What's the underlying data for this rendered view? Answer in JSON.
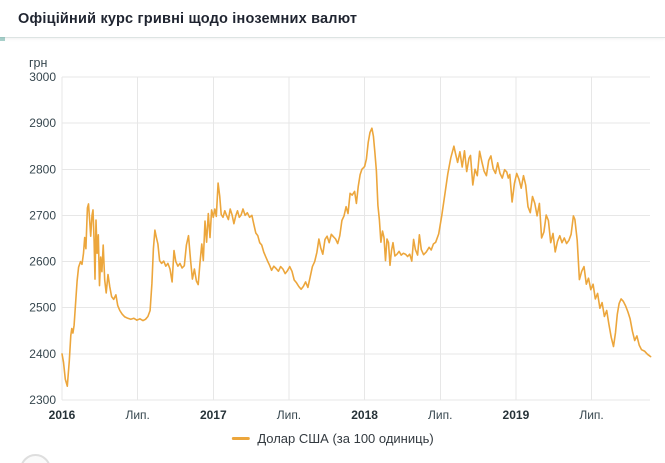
{
  "header": {
    "title": "Офіційний курс гривні щодо іноземних валют"
  },
  "legend": {
    "label": "Долар США (за 100 одиниць)"
  },
  "colors": {
    "line": "#eca63c",
    "grid": "#e7e7e7",
    "axis_text": "#37474f",
    "year_text": "#263238",
    "title_text": "#1f2430",
    "header_border": "#dde4e3",
    "background": "#ffffff"
  },
  "chart_data": {
    "type": "line",
    "title": "Офіційний курс гривні щодо іноземних валют",
    "ylabel": "грн",
    "xlabel": "",
    "ylim": [
      2300,
      3000
    ],
    "y_ticks": [
      3000,
      2900,
      2800,
      2700,
      2600,
      2500,
      2400,
      2300
    ],
    "x_ticks": [
      {
        "t": 0.0,
        "label": "2016",
        "bold": true
      },
      {
        "t": 0.5,
        "label": "Лип.",
        "bold": false
      },
      {
        "t": 1.0,
        "label": "2017",
        "bold": true
      },
      {
        "t": 1.5,
        "label": "Лип.",
        "bold": false
      },
      {
        "t": 2.0,
        "label": "2018",
        "bold": true
      },
      {
        "t": 2.5,
        "label": "Лип.",
        "bold": false
      },
      {
        "t": 3.0,
        "label": "2019",
        "bold": true
      },
      {
        "t": 3.5,
        "label": "Лип.",
        "bold": false
      }
    ],
    "x_unit": "years since 2016-01 (0 = Jan 2016, 0.5 = Jul 2016)",
    "grid": true,
    "legend_position": "bottom-center",
    "series": [
      {
        "name": "Долар США (за 100 одиниць)",
        "color": "#eca63c",
        "points": [
          [
            0.0,
            2400
          ],
          [
            0.01,
            2382
          ],
          [
            0.022,
            2345
          ],
          [
            0.035,
            2330
          ],
          [
            0.048,
            2385
          ],
          [
            0.058,
            2440
          ],
          [
            0.065,
            2455
          ],
          [
            0.072,
            2445
          ],
          [
            0.08,
            2462
          ],
          [
            0.09,
            2510
          ],
          [
            0.1,
            2558
          ],
          [
            0.11,
            2588
          ],
          [
            0.122,
            2600
          ],
          [
            0.132,
            2594
          ],
          [
            0.142,
            2618
          ],
          [
            0.15,
            2652
          ],
          [
            0.158,
            2628
          ],
          [
            0.168,
            2716
          ],
          [
            0.175,
            2725
          ],
          [
            0.183,
            2688
          ],
          [
            0.19,
            2655
          ],
          [
            0.198,
            2700
          ],
          [
            0.205,
            2712
          ],
          [
            0.212,
            2645
          ],
          [
            0.218,
            2562
          ],
          [
            0.225,
            2690
          ],
          [
            0.232,
            2618
          ],
          [
            0.24,
            2658
          ],
          [
            0.248,
            2548
          ],
          [
            0.256,
            2610
          ],
          [
            0.264,
            2578
          ],
          [
            0.272,
            2636
          ],
          [
            0.282,
            2560
          ],
          [
            0.292,
            2532
          ],
          [
            0.304,
            2572
          ],
          [
            0.316,
            2545
          ],
          [
            0.328,
            2524
          ],
          [
            0.342,
            2518
          ],
          [
            0.356,
            2528
          ],
          [
            0.368,
            2505
          ],
          [
            0.382,
            2494
          ],
          [
            0.398,
            2486
          ],
          [
            0.415,
            2480
          ],
          [
            0.435,
            2477
          ],
          [
            0.455,
            2475
          ],
          [
            0.475,
            2477
          ],
          [
            0.495,
            2473
          ],
          [
            0.515,
            2476
          ],
          [
            0.535,
            2472
          ],
          [
            0.552,
            2475
          ],
          [
            0.568,
            2481
          ],
          [
            0.582,
            2494
          ],
          [
            0.594,
            2552
          ],
          [
            0.604,
            2628
          ],
          [
            0.614,
            2668
          ],
          [
            0.624,
            2652
          ],
          [
            0.634,
            2638
          ],
          [
            0.645,
            2602
          ],
          [
            0.658,
            2596
          ],
          [
            0.672,
            2601
          ],
          [
            0.686,
            2590
          ],
          [
            0.7,
            2596
          ],
          [
            0.714,
            2584
          ],
          [
            0.728,
            2556
          ],
          [
            0.74,
            2624
          ],
          [
            0.752,
            2600
          ],
          [
            0.766,
            2590
          ],
          [
            0.78,
            2596
          ],
          [
            0.794,
            2586
          ],
          [
            0.808,
            2591
          ],
          [
            0.822,
            2636
          ],
          [
            0.836,
            2656
          ],
          [
            0.85,
            2602
          ],
          [
            0.862,
            2562
          ],
          [
            0.875,
            2584
          ],
          [
            0.888,
            2558
          ],
          [
            0.9,
            2550
          ],
          [
            0.912,
            2598
          ],
          [
            0.924,
            2638
          ],
          [
            0.934,
            2602
          ],
          [
            0.945,
            2688
          ],
          [
            0.956,
            2642
          ],
          [
            0.967,
            2704
          ],
          [
            0.978,
            2652
          ],
          [
            0.989,
            2712
          ],
          [
            1.0,
            2696
          ],
          [
            1.01,
            2714
          ],
          [
            1.02,
            2698
          ],
          [
            1.032,
            2770
          ],
          [
            1.042,
            2742
          ],
          [
            1.052,
            2702
          ],
          [
            1.064,
            2696
          ],
          [
            1.076,
            2710
          ],
          [
            1.088,
            2700
          ],
          [
            1.1,
            2691
          ],
          [
            1.112,
            2714
          ],
          [
            1.124,
            2701
          ],
          [
            1.136,
            2682
          ],
          [
            1.148,
            2699
          ],
          [
            1.16,
            2710
          ],
          [
            1.172,
            2696
          ],
          [
            1.184,
            2701
          ],
          [
            1.196,
            2714
          ],
          [
            1.21,
            2700
          ],
          [
            1.225,
            2706
          ],
          [
            1.24,
            2696
          ],
          [
            1.255,
            2700
          ],
          [
            1.268,
            2681
          ],
          [
            1.281,
            2662
          ],
          [
            1.294,
            2656
          ],
          [
            1.307,
            2641
          ],
          [
            1.32,
            2636
          ],
          [
            1.333,
            2621
          ],
          [
            1.346,
            2611
          ],
          [
            1.359,
            2601
          ],
          [
            1.372,
            2592
          ],
          [
            1.385,
            2581
          ],
          [
            1.4,
            2590
          ],
          [
            1.415,
            2585
          ],
          [
            1.43,
            2579
          ],
          [
            1.445,
            2589
          ],
          [
            1.46,
            2584
          ],
          [
            1.475,
            2574
          ],
          [
            1.49,
            2580
          ],
          [
            1.505,
            2589
          ],
          [
            1.52,
            2579
          ],
          [
            1.535,
            2560
          ],
          [
            1.55,
            2554
          ],
          [
            1.565,
            2546
          ],
          [
            1.58,
            2540
          ],
          [
            1.595,
            2546
          ],
          [
            1.61,
            2556
          ],
          [
            1.625,
            2544
          ],
          [
            1.64,
            2566
          ],
          [
            1.655,
            2589
          ],
          [
            1.67,
            2600
          ],
          [
            1.685,
            2620
          ],
          [
            1.698,
            2649
          ],
          [
            1.71,
            2630
          ],
          [
            1.724,
            2616
          ],
          [
            1.738,
            2648
          ],
          [
            1.752,
            2655
          ],
          [
            1.766,
            2641
          ],
          [
            1.78,
            2659
          ],
          [
            1.794,
            2654
          ],
          [
            1.808,
            2649
          ],
          [
            1.822,
            2639
          ],
          [
            1.836,
            2656
          ],
          [
            1.85,
            2689
          ],
          [
            1.864,
            2699
          ],
          [
            1.878,
            2719
          ],
          [
            1.89,
            2704
          ],
          [
            1.904,
            2748
          ],
          [
            1.918,
            2744
          ],
          [
            1.934,
            2752
          ],
          [
            1.946,
            2726
          ],
          [
            1.958,
            2762
          ],
          [
            1.97,
            2788
          ],
          [
            1.982,
            2800
          ],
          [
            2.0,
            2806
          ],
          [
            2.012,
            2822
          ],
          [
            2.024,
            2858
          ],
          [
            2.036,
            2880
          ],
          [
            2.048,
            2889
          ],
          [
            2.058,
            2872
          ],
          [
            2.068,
            2836
          ],
          [
            2.078,
            2796
          ],
          [
            2.088,
            2722
          ],
          [
            2.098,
            2690
          ],
          [
            2.108,
            2642
          ],
          [
            2.118,
            2666
          ],
          [
            2.128,
            2652
          ],
          [
            2.138,
            2602
          ],
          [
            2.148,
            2649
          ],
          [
            2.158,
            2641
          ],
          [
            2.168,
            2592
          ],
          [
            2.178,
            2624
          ],
          [
            2.188,
            2641
          ],
          [
            2.2,
            2612
          ],
          [
            2.214,
            2616
          ],
          [
            2.228,
            2622
          ],
          [
            2.242,
            2614
          ],
          [
            2.256,
            2618
          ],
          [
            2.27,
            2616
          ],
          [
            2.284,
            2611
          ],
          [
            2.298,
            2616
          ],
          [
            2.312,
            2601
          ],
          [
            2.324,
            2648
          ],
          [
            2.336,
            2626
          ],
          [
            2.35,
            2614
          ],
          [
            2.362,
            2658
          ],
          [
            2.375,
            2626
          ],
          [
            2.39,
            2615
          ],
          [
            2.408,
            2621
          ],
          [
            2.426,
            2631
          ],
          [
            2.44,
            2625
          ],
          [
            2.455,
            2638
          ],
          [
            2.47,
            2642
          ],
          [
            2.49,
            2660
          ],
          [
            2.51,
            2700
          ],
          [
            2.53,
            2745
          ],
          [
            2.55,
            2790
          ],
          [
            2.57,
            2825
          ],
          [
            2.59,
            2850
          ],
          [
            2.6,
            2835
          ],
          [
            2.615,
            2815
          ],
          [
            2.63,
            2838
          ],
          [
            2.645,
            2805
          ],
          [
            2.66,
            2840
          ],
          [
            2.675,
            2795
          ],
          [
            2.69,
            2824
          ],
          [
            2.7,
            2830
          ],
          [
            2.715,
            2766
          ],
          [
            2.73,
            2800
          ],
          [
            2.745,
            2786
          ],
          [
            2.76,
            2839
          ],
          [
            2.775,
            2816
          ],
          [
            2.79,
            2796
          ],
          [
            2.805,
            2786
          ],
          [
            2.82,
            2819
          ],
          [
            2.835,
            2829
          ],
          [
            2.85,
            2801
          ],
          [
            2.865,
            2791
          ],
          [
            2.88,
            2814
          ],
          [
            2.895,
            2791
          ],
          [
            2.91,
            2781
          ],
          [
            2.925,
            2799
          ],
          [
            2.94,
            2794
          ],
          [
            2.95,
            2781
          ],
          [
            2.96,
            2789
          ],
          [
            2.975,
            2729
          ],
          [
            2.99,
            2769
          ],
          [
            3.005,
            2791
          ],
          [
            3.02,
            2779
          ],
          [
            3.035,
            2759
          ],
          [
            3.05,
            2786
          ],
          [
            3.065,
            2766
          ],
          [
            3.08,
            2719
          ],
          [
            3.095,
            2706
          ],
          [
            3.11,
            2741
          ],
          [
            3.125,
            2726
          ],
          [
            3.14,
            2699
          ],
          [
            3.155,
            2726
          ],
          [
            3.17,
            2651
          ],
          [
            3.185,
            2664
          ],
          [
            3.2,
            2701
          ],
          [
            3.215,
            2689
          ],
          [
            3.23,
            2641
          ],
          [
            3.245,
            2661
          ],
          [
            3.26,
            2621
          ],
          [
            3.275,
            2644
          ],
          [
            3.29,
            2656
          ],
          [
            3.305,
            2641
          ],
          [
            3.32,
            2651
          ],
          [
            3.335,
            2639
          ],
          [
            3.35,
            2646
          ],
          [
            3.365,
            2659
          ],
          [
            3.38,
            2699
          ],
          [
            3.39,
            2691
          ],
          [
            3.405,
            2646
          ],
          [
            3.42,
            2561
          ],
          [
            3.435,
            2579
          ],
          [
            3.45,
            2589
          ],
          [
            3.465,
            2551
          ],
          [
            3.48,
            2564
          ],
          [
            3.495,
            2539
          ],
          [
            3.51,
            2551
          ],
          [
            3.525,
            2519
          ],
          [
            3.54,
            2531
          ],
          [
            3.555,
            2499
          ],
          [
            3.57,
            2511
          ],
          [
            3.585,
            2481
          ],
          [
            3.6,
            2494
          ],
          [
            3.615,
            2464
          ],
          [
            3.63,
            2436
          ],
          [
            3.645,
            2416
          ],
          [
            3.658,
            2446
          ],
          [
            3.67,
            2486
          ],
          [
            3.682,
            2509
          ],
          [
            3.695,
            2519
          ],
          [
            3.71,
            2514
          ],
          [
            3.725,
            2504
          ],
          [
            3.74,
            2491
          ],
          [
            3.755,
            2476
          ],
          [
            3.77,
            2449
          ],
          [
            3.785,
            2429
          ],
          [
            3.8,
            2439
          ],
          [
            3.815,
            2419
          ],
          [
            3.83,
            2409
          ],
          [
            3.85,
            2406
          ],
          [
            3.87,
            2399
          ],
          [
            3.89,
            2394
          ]
        ]
      }
    ]
  }
}
